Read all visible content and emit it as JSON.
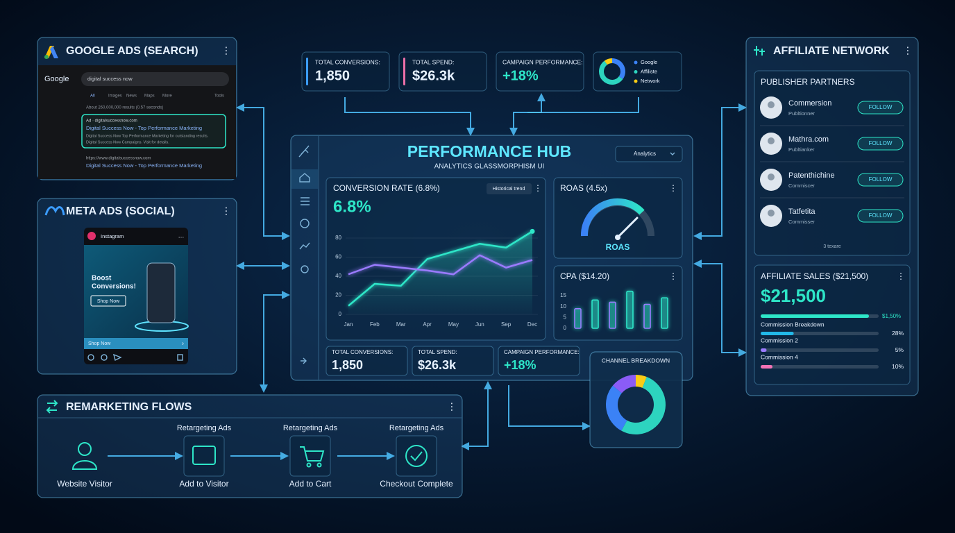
{
  "kpis_top": [
    {
      "label": "TOTAL CONVERSIONS:",
      "value": "1,850"
    },
    {
      "label": "TOTAL SPEND:",
      "value": "$26.3k"
    },
    {
      "label": "CAMPAIGN PERFORMANCE:",
      "value": "+18%"
    }
  ],
  "source_mix": {
    "type": "pie",
    "series": [
      {
        "name": "Google",
        "color": "#3b82f6",
        "value": 35
      },
      {
        "name": "Affiliste",
        "color": "#2dd4bf",
        "value": 55
      },
      {
        "name": "Network",
        "color": "#facc15",
        "value": 10
      }
    ]
  },
  "google_ads": {
    "title": "GOOGLE ADS (SEARCH)",
    "logo": "Google",
    "query": "digital success now",
    "tabs": [
      "All",
      "Images",
      "News",
      "Maps",
      "More"
    ],
    "tools": "Tools",
    "results": "About 260,000,000 results (0.57 seconds)",
    "ad_label": "Ad · digitalsuccessnow.com",
    "ad_headline": "Digital Success Now - Top Performance Marketing",
    "ad_description": "Digital Success Now Top Performance Marketing for outstanding results.",
    "ad_description_2": "Digital Success Now Campaigns. Visit for details.",
    "url": "https://www.digitalsuccessnow.com",
    "link": "Digital Success Now - Top Performance Marketing"
  },
  "meta_ads": {
    "title": "META ADS (SOCIAL)",
    "app": "Instagram",
    "headline": [
      "Boost",
      "Conversions!"
    ],
    "button": "Shop Now",
    "cta_bar": "Shop Now"
  },
  "remarketing": {
    "title": "REMARKETING FLOWS",
    "steps": [
      {
        "stage": null,
        "label": "Website Visitor"
      },
      {
        "stage": "Retargeting Ads",
        "label": "Add to Visitor"
      },
      {
        "stage": "Retargeting Ads",
        "label": "Add to Cart"
      },
      {
        "stage": "Retargeting Ads",
        "label": "Checkout Complete"
      }
    ]
  },
  "hub": {
    "title": "PERFORMANCE HUB",
    "subtitle": "ANALYTICS GLASSMORPHISM UI",
    "dropdown": "Analytics",
    "conversion": {
      "title": "CONVERSION RATE (6.8%)",
      "badge": "Historical trend",
      "value": "6.8%",
      "chart_data": {
        "type": "line",
        "categories": [
          "Jan",
          "Feb",
          "Mar",
          "Apr",
          "May",
          "Jun",
          "Sep",
          "Dec"
        ],
        "series": [
          {
            "color": "#2ee6c8",
            "values": [
              9,
              32,
              30,
              58,
              66,
              74,
              70,
              87
            ]
          },
          {
            "color": "#9b7bff",
            "values": [
              42,
              52,
              49,
              46,
              42,
              62,
              49,
              57
            ]
          }
        ],
        "ylim": [
          0,
          90
        ],
        "yticks": [
          0,
          20,
          40,
          60,
          80
        ]
      }
    },
    "roas": {
      "title": "ROAS (4.5x)",
      "gauge_label": "ROAS"
    },
    "cpa": {
      "title": "CPA ($14.20)",
      "chart_data": {
        "type": "bar",
        "values": [
          9,
          13,
          12,
          17,
          11,
          14
        ],
        "color": "#2ee6c8",
        "ylim": [
          0,
          18
        ],
        "yticks": [
          0,
          5,
          10,
          15
        ]
      }
    },
    "kpis_bottom": [
      {
        "label": "TOTAL CONVERSIONS:",
        "value": "1,850"
      },
      {
        "label": "TOTAL SPEND:",
        "value": "$26.3k"
      },
      {
        "label": "CAMPAIGN PERFORMANCE:",
        "value": "+18%"
      }
    ]
  },
  "channel_breakdown": {
    "title": "CHANNEL BREAKDOWN",
    "chart_data": {
      "type": "pie",
      "values": [
        6,
        52,
        28,
        14
      ],
      "colors": [
        "#facc15",
        "#2dd4bf",
        "#3b82f6",
        "#8b5cf6"
      ]
    }
  },
  "affiliate": {
    "title": "AFFILIATE NETWORK",
    "publishers": {
      "title": "PUBLISHER PARTNERS",
      "button": "FOLLOW",
      "items": [
        {
          "name": "Commersion",
          "role": "Publtionner"
        },
        {
          "name": "Mathra.com",
          "role": "Publtianker"
        },
        {
          "name": "Patenthichine",
          "role": "Commiscer"
        },
        {
          "name": "Tatfetita",
          "role": "Commisser"
        }
      ],
      "more": "3 texare"
    },
    "sales": {
      "title": "AFFILIATE SALES ($21,500)",
      "value": "$21,500",
      "total_label": "$1,50%",
      "heading": "Commission Breakdown",
      "bars": [
        {
          "name": null,
          "value": 28,
          "value_label": "28%",
          "color": "#22b8e8"
        },
        {
          "name": "Commission 2",
          "value": 5,
          "value_label": "5%",
          "color": "#9b7bff"
        },
        {
          "name": "Commission 4",
          "value": 10,
          "value_label": "10%",
          "color": "#f472b6"
        }
      ]
    }
  }
}
